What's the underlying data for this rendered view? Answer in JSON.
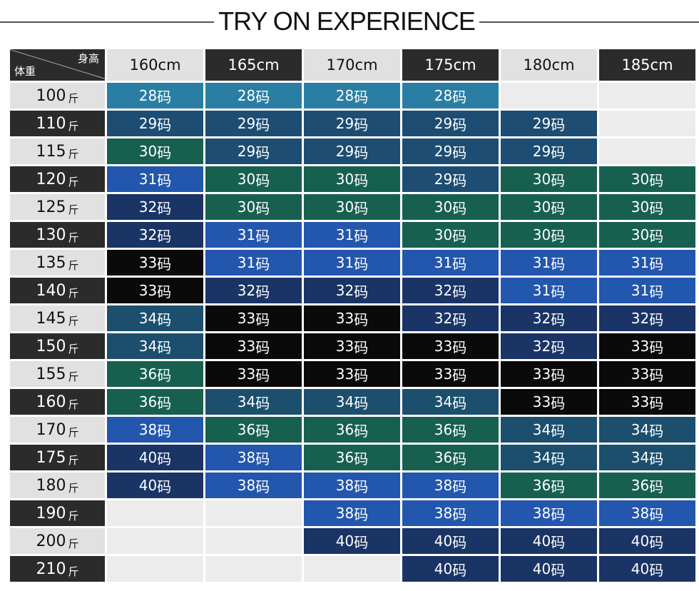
{
  "title": "TRY ON EXPERIENCE",
  "corner": {
    "height_label": "身高",
    "weight_label": "体重"
  },
  "heights": [
    "160cm",
    "165cm",
    "170cm",
    "175cm",
    "180cm",
    "185cm"
  ],
  "weight_unit": "斤",
  "size_unit": "码",
  "colors": {
    "28": "#2a7ea3",
    "29": "#1d4d72",
    "30": "#17604f",
    "31": "#2356ad",
    "32": "#1a3466",
    "33": "#0a0a0a",
    "34": "#1c4f6e",
    "36": "#17604f",
    "38": "#2356ad",
    "40": "#1a3466",
    "empty": "#ececec"
  },
  "rows": [
    {
      "weight": "100",
      "sizes": [
        "28",
        "28",
        "28",
        "28",
        "",
        ""
      ]
    },
    {
      "weight": "110",
      "sizes": [
        "29",
        "29",
        "29",
        "29",
        "29",
        ""
      ]
    },
    {
      "weight": "115",
      "sizes": [
        "30",
        "29",
        "29",
        "29",
        "29",
        ""
      ]
    },
    {
      "weight": "120",
      "sizes": [
        "31",
        "30",
        "30",
        "29",
        "30",
        "30"
      ]
    },
    {
      "weight": "125",
      "sizes": [
        "32",
        "30",
        "30",
        "30",
        "30",
        "30"
      ]
    },
    {
      "weight": "130",
      "sizes": [
        "32",
        "31",
        "31",
        "30",
        "30",
        "30"
      ]
    },
    {
      "weight": "135",
      "sizes": [
        "33",
        "31",
        "31",
        "31",
        "31",
        "31"
      ]
    },
    {
      "weight": "140",
      "sizes": [
        "33",
        "32",
        "32",
        "32",
        "31",
        "31"
      ]
    },
    {
      "weight": "145",
      "sizes": [
        "34",
        "33",
        "33",
        "32",
        "32",
        "32"
      ]
    },
    {
      "weight": "150",
      "sizes": [
        "34",
        "33",
        "33",
        "33",
        "32",
        "33"
      ]
    },
    {
      "weight": "155",
      "sizes": [
        "36",
        "33",
        "33",
        "33",
        "33",
        "33"
      ]
    },
    {
      "weight": "160",
      "sizes": [
        "36",
        "34",
        "34",
        "34",
        "33",
        "33"
      ]
    },
    {
      "weight": "170",
      "sizes": [
        "38",
        "36",
        "36",
        "36",
        "34",
        "34"
      ]
    },
    {
      "weight": "175",
      "sizes": [
        "40",
        "38",
        "36",
        "36",
        "34",
        "34"
      ]
    },
    {
      "weight": "180",
      "sizes": [
        "40",
        "38",
        "38",
        "38",
        "36",
        "36"
      ]
    },
    {
      "weight": "190",
      "sizes": [
        "",
        "",
        "38",
        "38",
        "38",
        "38"
      ]
    },
    {
      "weight": "200",
      "sizes": [
        "",
        "",
        "40",
        "40",
        "40",
        "40"
      ]
    },
    {
      "weight": "210",
      "sizes": [
        "",
        "",
        "",
        "40",
        "40",
        "40"
      ]
    }
  ]
}
